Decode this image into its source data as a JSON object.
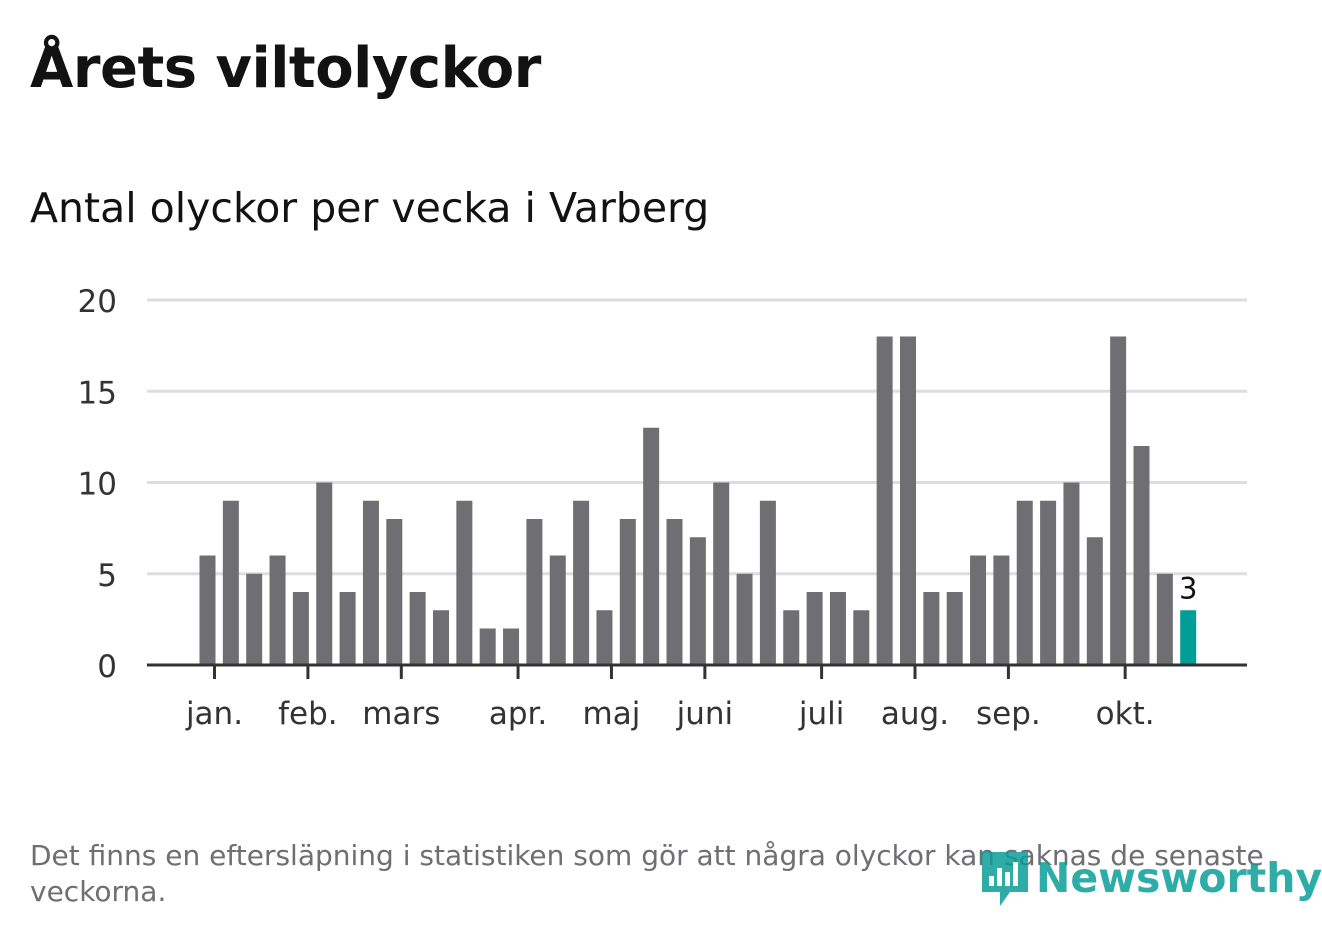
{
  "title": "Årets viltolyckor",
  "subtitle": "Antal olyckor per vecka i Varberg",
  "footnote": "Det finns en eftersläpning i statistiken som gör att några olyckor kan saknas de senaste veckorna.",
  "logo": {
    "text": "Newsworthy",
    "icon": "newsworthy-logo-icon"
  },
  "colors": {
    "bar": "#6f6e73",
    "highlight": "#009e96",
    "grid": "#dddddd",
    "axis": "#333333",
    "text": "#121212"
  },
  "chart_data": {
    "type": "bar",
    "title": "Antal olyckor per vecka i Varberg",
    "xlabel": "",
    "ylabel": "",
    "ylim": [
      0,
      20
    ],
    "yticks": [
      0,
      5,
      10,
      15,
      20
    ],
    "grid": true,
    "series": [
      {
        "name": "Antal olyckor",
        "values": [
          6,
          9,
          5,
          6,
          4,
          10,
          4,
          9,
          8,
          4,
          3,
          9,
          2,
          2,
          8,
          6,
          9,
          3,
          8,
          13,
          8,
          7,
          10,
          5,
          9,
          3,
          4,
          4,
          3,
          18,
          18,
          4,
          4,
          6,
          6,
          9,
          9,
          10,
          7,
          18,
          12,
          5,
          3
        ]
      }
    ],
    "x_month_labels": [
      {
        "label": "jan.",
        "week": 0.3
      },
      {
        "label": "feb.",
        "week": 4.3
      },
      {
        "label": "mars",
        "week": 8.3
      },
      {
        "label": "apr.",
        "week": 13.3
      },
      {
        "label": "maj",
        "week": 17.3
      },
      {
        "label": "juni",
        "week": 21.3
      },
      {
        "label": "juli",
        "week": 26.3
      },
      {
        "label": "aug.",
        "week": 30.3
      },
      {
        "label": "sep.",
        "week": 34.3
      },
      {
        "label": "okt.",
        "week": 39.3
      }
    ],
    "highlight": {
      "index": 42,
      "label": "3"
    }
  }
}
